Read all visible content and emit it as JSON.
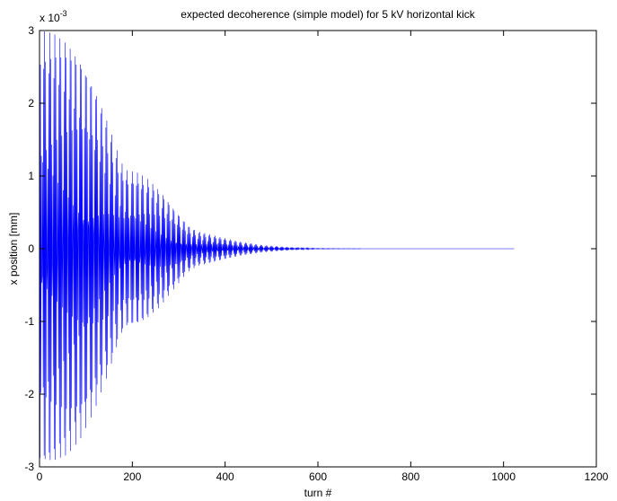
{
  "chart_data": {
    "type": "line",
    "title": "expected decoherence (simple model) for 5 kV horizontal kick",
    "xlabel": "turn #",
    "ylabel": "x position [mm]",
    "exponent_label": "x 10",
    "exponent_sup": "-3",
    "xlim": [
      0,
      1200
    ],
    "ylim": [
      -3,
      3
    ],
    "xticks": [
      0,
      200,
      400,
      600,
      800,
      1000,
      1200
    ],
    "yticks": [
      -3,
      -2,
      -1,
      0,
      1,
      2,
      3
    ],
    "grid": false,
    "series": [
      {
        "color": "#0000ff",
        "turns": 1024,
        "envelope_points": [
          {
            "turn": 0,
            "amplitude": 3.0
          },
          {
            "turn": 30,
            "amplitude": 2.97
          },
          {
            "turn": 60,
            "amplitude": 2.85
          },
          {
            "turn": 90,
            "amplitude": 2.6
          },
          {
            "turn": 120,
            "amplitude": 2.2
          },
          {
            "turn": 150,
            "amplitude": 1.7
          },
          {
            "turn": 175,
            "amplitude": 1.2
          },
          {
            "turn": 190,
            "amplitude": 1.07
          },
          {
            "turn": 210,
            "amplitude": 1.05
          },
          {
            "turn": 230,
            "amplitude": 0.98
          },
          {
            "turn": 260,
            "amplitude": 0.8
          },
          {
            "turn": 290,
            "amplitude": 0.55
          },
          {
            "turn": 320,
            "amplitude": 0.32
          },
          {
            "turn": 340,
            "amplitude": 0.24
          },
          {
            "turn": 360,
            "amplitude": 0.21
          },
          {
            "turn": 390,
            "amplitude": 0.16
          },
          {
            "turn": 430,
            "amplitude": 0.1
          },
          {
            "turn": 480,
            "amplitude": 0.05
          },
          {
            "turn": 540,
            "amplitude": 0.02
          },
          {
            "turn": 600,
            "amplitude": 0.005
          },
          {
            "turn": 700,
            "amplitude": 0.0
          },
          {
            "turn": 1024,
            "amplitude": 0.0
          }
        ]
      }
    ]
  }
}
